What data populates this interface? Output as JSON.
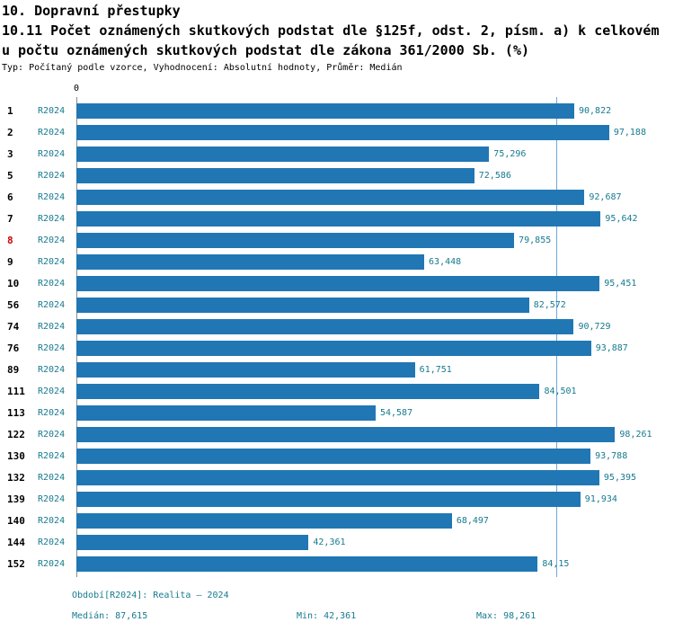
{
  "title": {
    "line1": "10. Dopravní přestupky",
    "line2": "10.11 Počet oznámených skutkových podstat dle §125f, odst. 2, písm. a) k celkovém",
    "line3": "u počtu oznámených skutkových podstat dle zákona 361/2000 Sb. (%)",
    "meta": "Typ: Počítaný podle vzorce, Vyhodnocení: Absolutní hodnoty, Průměr: Medián"
  },
  "chart_data": {
    "type": "bar",
    "orientation": "horizontal",
    "series_label": "R2024",
    "axis_zero_label": "0",
    "xlim": [
      0,
      100
    ],
    "grid": false,
    "median_value": 87.615,
    "categories": [
      "1",
      "2",
      "3",
      "5",
      "6",
      "7",
      "8",
      "9",
      "10",
      "56",
      "74",
      "76",
      "89",
      "111",
      "113",
      "122",
      "130",
      "132",
      "139",
      "140",
      "144",
      "152"
    ],
    "values": [
      90.822,
      97.188,
      75.296,
      72.586,
      92.687,
      95.642,
      79.855,
      63.448,
      95.451,
      82.572,
      90.729,
      93.887,
      61.751,
      84.501,
      54.587,
      98.261,
      93.788,
      95.395,
      91.934,
      68.497,
      42.361,
      84.15
    ],
    "value_labels": [
      "90,822",
      "97,188",
      "75,296",
      "72,586",
      "92,687",
      "95,642",
      "79,855",
      "63,448",
      "95,451",
      "82,572",
      "90,729",
      "93,887",
      "61,751",
      "84,501",
      "54,587",
      "98,261",
      "93,788",
      "95,395",
      "91,934",
      "68,497",
      "42,361",
      "84,15"
    ],
    "highlighted_category": "8",
    "colors": {
      "bar": "#2077b4",
      "label_text": "#177a8f",
      "highlight_category": "#cc0000",
      "median_line": "#6fa8dc"
    }
  },
  "footer": {
    "period": "Období[R2024]: Realita – 2024",
    "median": "Medián: 87,615",
    "min": "Min: 42,361",
    "max": "Max: 98,261"
  }
}
